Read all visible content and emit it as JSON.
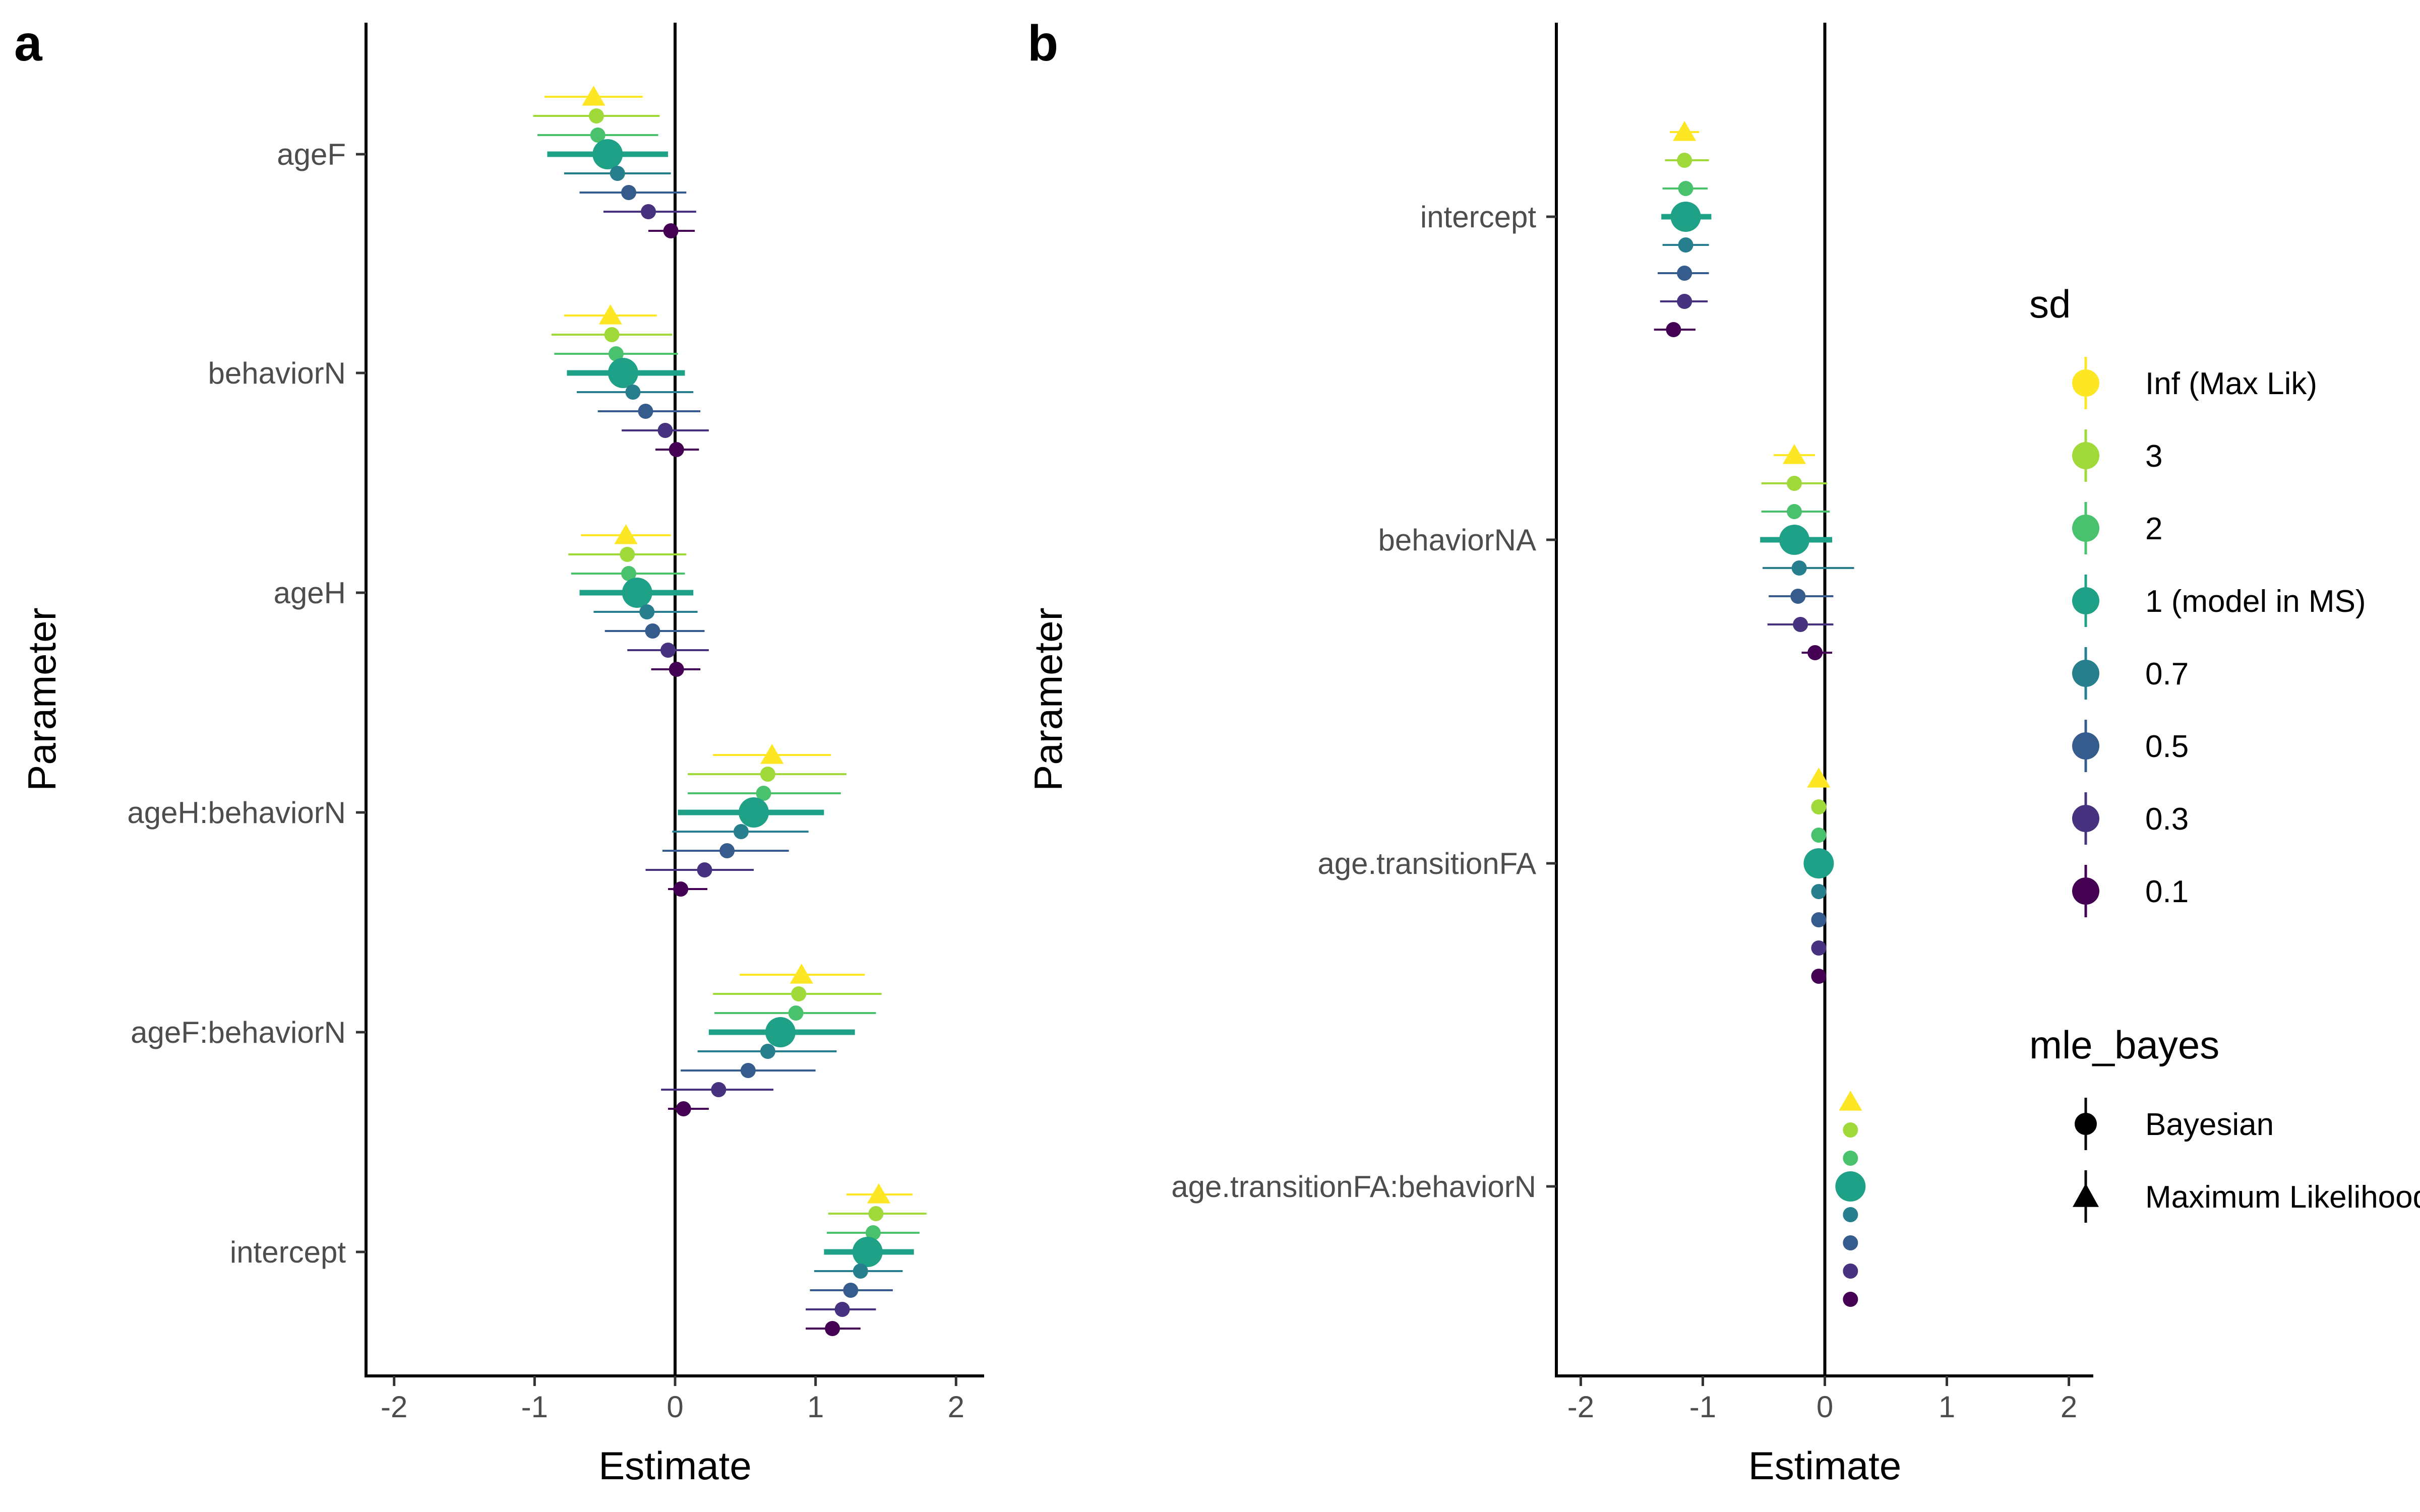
{
  "chart_data": [
    {
      "type": "forest",
      "panel": "a",
      "xlabel": "Estimate",
      "ylabel": "Parameter",
      "xlim": [
        -2.2,
        2.2
      ],
      "xticks": [
        -2,
        -1,
        0,
        1,
        2
      ],
      "xtick_labels": [
        "-2",
        "-1",
        "0",
        "1",
        "2"
      ],
      "reference_line_x": 0,
      "grid": false,
      "series_order": [
        "Inf (Max Lik)",
        "3",
        "2",
        "1 (model in MS)",
        "0.7",
        "0.5",
        "0.3",
        "0.1"
      ],
      "parameters": [
        {
          "name": "ageF",
          "estimates": [
            -0.58,
            -0.56,
            -0.55,
            -0.48,
            -0.41,
            -0.33,
            -0.19,
            -0.03
          ],
          "lower": [
            -0.93,
            -1.01,
            -0.98,
            -0.91,
            -0.79,
            -0.68,
            -0.51,
            -0.19
          ],
          "upper": [
            -0.23,
            -0.11,
            -0.12,
            -0.05,
            -0.03,
            0.08,
            0.15,
            0.14
          ]
        },
        {
          "name": "behaviorN",
          "estimates": [
            -0.46,
            -0.45,
            -0.42,
            -0.37,
            -0.3,
            -0.21,
            -0.07,
            0.01
          ],
          "lower": [
            -0.79,
            -0.88,
            -0.86,
            -0.77,
            -0.7,
            -0.55,
            -0.38,
            -0.14
          ],
          "upper": [
            -0.13,
            -0.02,
            0.02,
            0.07,
            0.13,
            0.18,
            0.24,
            0.17
          ]
        },
        {
          "name": "ageH",
          "estimates": [
            -0.35,
            -0.34,
            -0.33,
            -0.27,
            -0.2,
            -0.16,
            -0.05,
            0.01
          ],
          "lower": [
            -0.67,
            -0.76,
            -0.74,
            -0.68,
            -0.58,
            -0.5,
            -0.34,
            -0.17
          ],
          "upper": [
            -0.03,
            0.08,
            0.07,
            0.13,
            0.16,
            0.21,
            0.24,
            0.18
          ]
        },
        {
          "name": "ageH:behaviorN",
          "estimates": [
            0.69,
            0.66,
            0.63,
            0.56,
            0.47,
            0.37,
            0.21,
            0.04
          ],
          "lower": [
            0.27,
            0.09,
            0.09,
            0.02,
            -0.02,
            -0.09,
            -0.21,
            -0.05
          ],
          "upper": [
            1.11,
            1.22,
            1.18,
            1.06,
            0.95,
            0.81,
            0.56,
            0.23
          ]
        },
        {
          "name": "ageF:behaviorN",
          "estimates": [
            0.9,
            0.88,
            0.86,
            0.75,
            0.66,
            0.52,
            0.31,
            0.06
          ],
          "lower": [
            0.46,
            0.27,
            0.28,
            0.24,
            0.16,
            0.04,
            -0.1,
            -0.05
          ],
          "upper": [
            1.35,
            1.47,
            1.43,
            1.28,
            1.15,
            1.0,
            0.7,
            0.24
          ]
        },
        {
          "name": "intercept",
          "estimates": [
            1.45,
            1.43,
            1.41,
            1.37,
            1.32,
            1.25,
            1.19,
            1.12
          ],
          "lower": [
            1.22,
            1.09,
            1.08,
            1.06,
            0.99,
            0.96,
            0.93,
            0.93
          ],
          "upper": [
            1.69,
            1.79,
            1.74,
            1.7,
            1.62,
            1.55,
            1.43,
            1.32
          ]
        }
      ]
    },
    {
      "type": "forest",
      "panel": "b",
      "xlabel": "Estimate",
      "ylabel": "Parameter",
      "xlim": [
        -2.2,
        2.2
      ],
      "xticks": [
        -2,
        -1,
        0,
        1,
        2
      ],
      "xtick_labels": [
        "-2",
        "-1",
        "0",
        "1",
        "2"
      ],
      "reference_line_x": 0,
      "grid": false,
      "series_order": [
        "Inf (Max Lik)",
        "3",
        "2",
        "1 (model in MS)",
        "0.7",
        "0.5",
        "0.3",
        "0.1"
      ],
      "parameters": [
        {
          "name": "intercept",
          "estimates": [
            -1.15,
            -1.15,
            -1.14,
            -1.14,
            -1.14,
            -1.15,
            -1.15,
            -1.24
          ],
          "lower": [
            -1.27,
            -1.31,
            -1.33,
            -1.34,
            -1.33,
            -1.37,
            -1.35,
            -1.4
          ],
          "upper": [
            -1.03,
            -0.95,
            -0.96,
            -0.93,
            -0.95,
            -0.95,
            -0.96,
            -1.06
          ]
        },
        {
          "name": "behaviorNA",
          "estimates": [
            -0.25,
            -0.25,
            -0.25,
            -0.25,
            -0.21,
            -0.22,
            -0.2,
            -0.08
          ],
          "lower": [
            -0.42,
            -0.52,
            -0.52,
            -0.53,
            -0.51,
            -0.46,
            -0.47,
            -0.19
          ],
          "upper": [
            -0.08,
            0.02,
            0.04,
            0.06,
            0.24,
            0.07,
            0.07,
            0.06
          ]
        },
        {
          "name": "age.transitionFA",
          "estimates": [
            -0.05,
            -0.05,
            -0.05,
            -0.05,
            -0.05,
            -0.05,
            -0.05,
            -0.05
          ],
          "lower": [
            -0.09,
            -0.09,
            -0.09,
            -0.11,
            -0.09,
            -0.09,
            -0.09,
            -0.09
          ],
          "upper": [
            -0.01,
            -0.01,
            -0.01,
            0.01,
            -0.01,
            -0.01,
            -0.01,
            -0.01
          ]
        },
        {
          "name": "age.transitionFA:behaviorN",
          "estimates": [
            0.21,
            0.21,
            0.21,
            0.21,
            0.21,
            0.21,
            0.21,
            0.21
          ],
          "lower": [
            0.17,
            0.17,
            0.17,
            0.15,
            0.17,
            0.17,
            0.17,
            0.17
          ],
          "upper": [
            0.25,
            0.25,
            0.25,
            0.27,
            0.25,
            0.25,
            0.25,
            0.25
          ]
        }
      ]
    }
  ],
  "panel_a": {
    "tag": "a"
  },
  "panel_b": {
    "tag": "b"
  },
  "legend": {
    "sd_title": "sd",
    "sd_items": [
      {
        "label": "Inf (Max Lik)",
        "color": "#FDE725"
      },
      {
        "label": "3",
        "color": "#9FDA3A"
      },
      {
        "label": "2",
        "color": "#4AC16D"
      },
      {
        "label": "1 (model in MS)",
        "color": "#1FA187"
      },
      {
        "label": "0.7",
        "color": "#277F8E"
      },
      {
        "label": "0.5",
        "color": "#365C8D"
      },
      {
        "label": "0.3",
        "color": "#46327E"
      },
      {
        "label": "0.1",
        "color": "#440154"
      }
    ],
    "shape_title": "mle_bayes",
    "shape_items": [
      {
        "label": "Bayesian",
        "shape": "circle"
      },
      {
        "label": "Maximum Likelihood",
        "shape": "triangle"
      }
    ]
  }
}
